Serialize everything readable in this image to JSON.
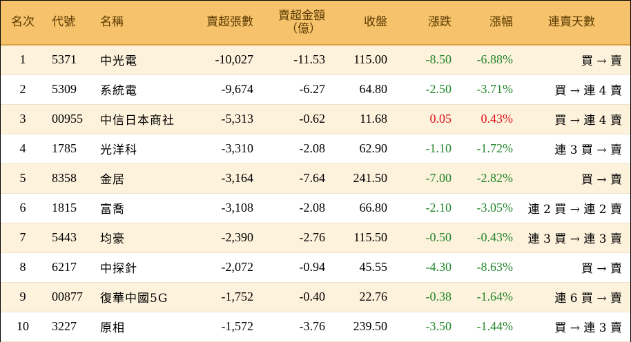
{
  "headers": {
    "rank": "名次",
    "code": "代號",
    "name": "名稱",
    "net_sell_lots": "賣超張數",
    "net_sell_amount_line1": "賣超金額",
    "net_sell_amount_line2": "（億）",
    "close": "收盤",
    "change": "漲跌",
    "change_pct": "漲幅",
    "consecutive_days": "連賣天數"
  },
  "colors": {
    "header_bg": "#f6c26b",
    "odd_row_bg": "#fdf2dc",
    "negative": "#22862a",
    "positive": "#e0121b"
  },
  "rows": [
    {
      "rank": "1",
      "code": "5371",
      "name": "中光電",
      "lots": "-10,027",
      "amount": "-11.53",
      "close": "115.00",
      "change": "-8.50",
      "pct": "-6.88%",
      "days": "買 → 賣",
      "dir": "neg"
    },
    {
      "rank": "2",
      "code": "5309",
      "name": "系統電",
      "lots": "-9,674",
      "amount": "-6.27",
      "close": "64.80",
      "change": "-2.50",
      "pct": "-3.71%",
      "days": "買 → 連 4 賣",
      "dir": "neg"
    },
    {
      "rank": "3",
      "code": "00955",
      "name": "中信日本商社",
      "lots": "-5,313",
      "amount": "-0.62",
      "close": "11.68",
      "change": "0.05",
      "pct": "0.43%",
      "days": "買 → 連 4 賣",
      "dir": "pos"
    },
    {
      "rank": "4",
      "code": "1785",
      "name": "光洋科",
      "lots": "-3,310",
      "amount": "-2.08",
      "close": "62.90",
      "change": "-1.10",
      "pct": "-1.72%",
      "days": "連 3 買 → 賣",
      "dir": "neg"
    },
    {
      "rank": "5",
      "code": "8358",
      "name": "金居",
      "lots": "-3,164",
      "amount": "-7.64",
      "close": "241.50",
      "change": "-7.00",
      "pct": "-2.82%",
      "days": "買 → 賣",
      "dir": "neg"
    },
    {
      "rank": "6",
      "code": "1815",
      "name": "富喬",
      "lots": "-3,108",
      "amount": "-2.08",
      "close": "66.80",
      "change": "-2.10",
      "pct": "-3.05%",
      "days": "連 2 買 → 連 2 賣",
      "dir": "neg"
    },
    {
      "rank": "7",
      "code": "5443",
      "name": "均豪",
      "lots": "-2,390",
      "amount": "-2.76",
      "close": "115.50",
      "change": "-0.50",
      "pct": "-0.43%",
      "days": "連 3 買 → 連 3 賣",
      "dir": "neg"
    },
    {
      "rank": "8",
      "code": "6217",
      "name": "中探針",
      "lots": "-2,072",
      "amount": "-0.94",
      "close": "45.55",
      "change": "-4.30",
      "pct": "-8.63%",
      "days": "買 → 賣",
      "dir": "neg"
    },
    {
      "rank": "9",
      "code": "00877",
      "name": "復華中國5G",
      "lots": "-1,752",
      "amount": "-0.40",
      "close": "22.76",
      "change": "-0.38",
      "pct": "-1.64%",
      "days": "連 6 買 → 賣",
      "dir": "neg"
    },
    {
      "rank": "10",
      "code": "3227",
      "name": "原相",
      "lots": "-1,572",
      "amount": "-3.76",
      "close": "239.50",
      "change": "-3.50",
      "pct": "-1.44%",
      "days": "買 → 連 3 賣",
      "dir": "neg"
    }
  ]
}
